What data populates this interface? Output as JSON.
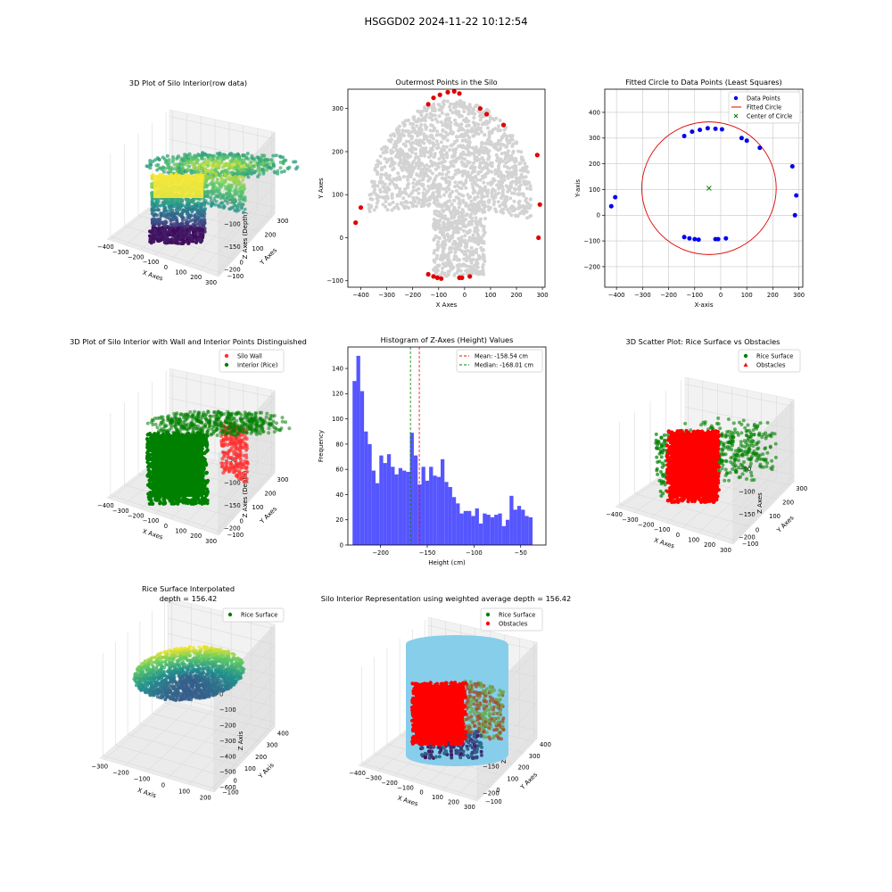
{
  "suptitle": "HSGGD02 2024-11-22 10:12:54",
  "chart_data": [
    {
      "type": "scatter3d",
      "title": "3D Plot of Silo Interior(row data)",
      "xlabel": "X Axes",
      "ylabel": "Y Axes",
      "zlabel": "Z Axes (Depth)",
      "xticks": [
        -400,
        -300,
        -200,
        -100,
        0,
        100,
        200,
        300
      ],
      "yticks": [
        -100,
        0,
        100,
        200,
        300
      ],
      "zticks": [
        -50,
        -100,
        -150,
        -200
      ],
      "colormap": [
        "#440154",
        "#3b528b",
        "#21918c",
        "#5ec962",
        "#fde725"
      ]
    },
    {
      "type": "scatter",
      "title": "Outermost Points in the Silo",
      "xlabel": "X Axes",
      "ylabel": "Y Axes",
      "xlim": [
        -450,
        310
      ],
      "ylim": [
        -115,
        345
      ],
      "xticks": [
        -400,
        -300,
        -200,
        -100,
        0,
        100,
        200,
        300
      ],
      "yticks": [
        -100,
        0,
        100,
        200,
        300
      ],
      "background_color": "#d3d3d3",
      "outer_color": "#e00000",
      "outer_points": [
        [
          -420,
          35
        ],
        [
          -400,
          70
        ],
        [
          -140,
          310
        ],
        [
          -120,
          325
        ],
        [
          -95,
          332
        ],
        [
          -65,
          338
        ],
        [
          -40,
          340
        ],
        [
          -20,
          335
        ],
        [
          60,
          300
        ],
        [
          85,
          287
        ],
        [
          150,
          262
        ],
        [
          280,
          192
        ],
        [
          290,
          77
        ],
        [
          285,
          0
        ],
        [
          -140,
          -85
        ],
        [
          -120,
          -90
        ],
        [
          -105,
          -93
        ],
        [
          -90,
          -95
        ],
        [
          -20,
          -93
        ],
        [
          -10,
          -93
        ],
        [
          20,
          -90
        ]
      ]
    },
    {
      "type": "scatter",
      "title": "Fitted Circle to Data Points (Least Squares)",
      "xlabel": "X-axis",
      "ylabel": "Y-axis",
      "xlim": [
        -445,
        315
      ],
      "ylim": [
        -280,
        490
      ],
      "xticks": [
        -400,
        -300,
        -200,
        -100,
        0,
        100,
        200,
        300
      ],
      "yticks": [
        -200,
        -100,
        0,
        100,
        200,
        300,
        400
      ],
      "grid": true,
      "legend": [
        "Data Points",
        "Fitted Circle",
        "Center of Circle"
      ],
      "legend_position": "top-right",
      "points": [
        [
          -420,
          35
        ],
        [
          -405,
          70
        ],
        [
          -140,
          308
        ],
        [
          -110,
          325
        ],
        [
          -80,
          332
        ],
        [
          -50,
          338
        ],
        [
          -20,
          336
        ],
        [
          5,
          334
        ],
        [
          80,
          300
        ],
        [
          100,
          290
        ],
        [
          150,
          262
        ],
        [
          275,
          190
        ],
        [
          290,
          77
        ],
        [
          285,
          0
        ],
        [
          -140,
          -85
        ],
        [
          -120,
          -90
        ],
        [
          -100,
          -93
        ],
        [
          -85,
          -95
        ],
        [
          -20,
          -93
        ],
        [
          -10,
          -93
        ],
        [
          20,
          -90
        ]
      ],
      "circle": {
        "cx": -45,
        "cy": 105,
        "r": 258
      },
      "center": [
        -45,
        105
      ],
      "colors": {
        "points": "#0000ee",
        "circle": "#e00000",
        "center": "#008000"
      }
    },
    {
      "type": "scatter3d",
      "title": "3D Plot of Silo Interior with Wall and Interior Points Distinguished",
      "xlabel": "X Axes",
      "ylabel": "Y Axes",
      "zlabel": "Z Axes (Depth)",
      "xticks": [
        -400,
        -300,
        -200,
        -100,
        0,
        100,
        200,
        300
      ],
      "yticks": [
        -100,
        0,
        100,
        200,
        300
      ],
      "zticks": [
        -50,
        -100,
        -150,
        -200
      ],
      "legend": [
        "Silo Wall",
        "Interior (Rice)"
      ],
      "legend_position": "top-right",
      "colors": {
        "wall": "#ff3030",
        "interior": "#008000"
      }
    },
    {
      "type": "bar",
      "title": "Histogram of Z-Axes (Height) Values",
      "xlabel": "Height (cm)",
      "ylabel": "Frequency",
      "xlim": [
        -235,
        -23
      ],
      "ylim": [
        0,
        157
      ],
      "xticks": [
        -200,
        -150,
        -100,
        -50
      ],
      "yticks": [
        0,
        20,
        40,
        60,
        80,
        100,
        120,
        140
      ],
      "bin_start": -230,
      "bin_width": 4.1,
      "values": [
        130,
        150,
        122,
        90,
        80,
        59,
        49,
        71,
        65,
        72,
        62,
        56,
        61,
        59,
        58,
        89,
        71,
        48,
        62,
        51,
        62,
        55,
        54,
        68,
        50,
        46,
        38,
        33,
        25,
        27,
        27,
        23,
        29,
        17,
        25,
        24,
        22,
        24,
        25,
        15,
        20,
        39,
        28,
        31,
        28,
        23,
        22
      ],
      "bar_color": "#4444ff",
      "mean": -158.54,
      "median": -168.01,
      "legend": [
        "Mean: -158.54 cm",
        "Median: -168.01 cm"
      ],
      "legend_position": "top-right",
      "colors": {
        "mean": "#ff0000",
        "median": "#008000"
      }
    },
    {
      "type": "scatter3d",
      "title": "3D Scatter Plot: Rice Surface vs Obstacles",
      "xlabel": "X Axes",
      "ylabel": "Y Axes",
      "zlabel": "Z Axes",
      "xticks": [
        -400,
        -300,
        -200,
        -100,
        0,
        100,
        200,
        300
      ],
      "yticks": [
        -100,
        0,
        100,
        200,
        300
      ],
      "zticks": [
        -50,
        -100,
        -150,
        -200
      ],
      "legend": [
        "Rice Surface",
        "Obstacles"
      ],
      "legend_position": "top-right",
      "colors": {
        "rice": "#008000",
        "obstacle": "#ff0000"
      }
    },
    {
      "type": "scatter3d",
      "title": "Rice Surface Interpolated",
      "subtitle": "depth = 156.42",
      "xlabel": "X Axis",
      "ylabel": "Y Axis",
      "zlabel": "Z Axis",
      "xticks": [
        -300,
        -200,
        -100,
        0,
        100,
        200
      ],
      "yticks": [
        -100,
        0,
        100,
        200,
        300,
        400
      ],
      "zticks": [
        0,
        -100,
        -200,
        -300,
        -400,
        -500,
        -600
      ],
      "legend": [
        "Rice Surface"
      ],
      "legend_position": "top-right",
      "colors": {
        "rice": "#008000"
      }
    },
    {
      "type": "scatter3d",
      "title": "Silo Interior Representation using weighted average depth = 156.42",
      "xlabel": "X Axes",
      "ylabel": "Y Axes",
      "zlabel": "Z Axes",
      "xticks": [
        -400,
        -300,
        -200,
        -100,
        0,
        100,
        200,
        300
      ],
      "yticks": [
        -100,
        0,
        100,
        200,
        300,
        400
      ],
      "zticks": [
        -50,
        -100,
        -150,
        -200
      ],
      "legend": [
        "Rice Surface",
        "Obstacles"
      ],
      "legend_position": "top-center",
      "colors": {
        "rice": "#008000",
        "obstacle": "#ff0000",
        "cylinder": "#87ceeb"
      }
    }
  ]
}
